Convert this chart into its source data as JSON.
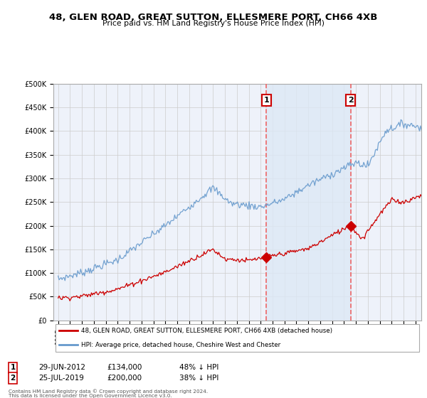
{
  "title": "48, GLEN ROAD, GREAT SUTTON, ELLESMERE PORT, CH66 4XB",
  "subtitle": "Price paid vs. HM Land Registry's House Price Index (HPI)",
  "hpi_label": "HPI: Average price, detached house, Cheshire West and Chester",
  "property_label": "48, GLEN ROAD, GREAT SUTTON, ELLESMERE PORT, CH66 4XB (detached house)",
  "footer1": "Contains HM Land Registry data © Crown copyright and database right 2024.",
  "footer2": "This data is licensed under the Open Government Licence v3.0.",
  "purchase1_date": "29-JUN-2012",
  "purchase1_price": 134000,
  "purchase1_pct": "48% ↓ HPI",
  "purchase2_date": "25-JUL-2019",
  "purchase2_price": 200000,
  "purchase2_pct": "38% ↓ HPI",
  "purchase1_year": 2012.49,
  "purchase2_year": 2019.56,
  "hpi_color": "#6699cc",
  "hpi_fill_color": "#dde8f5",
  "property_color": "#cc0000",
  "vline_color": "#ee6666",
  "background_color": "#ffffff",
  "plot_bg_color": "#eef2fa",
  "grid_color": "#cccccc",
  "ylim_max": 500000,
  "ylim_min": 0,
  "xlim_min": 1994.6,
  "xlim_max": 2025.5
}
